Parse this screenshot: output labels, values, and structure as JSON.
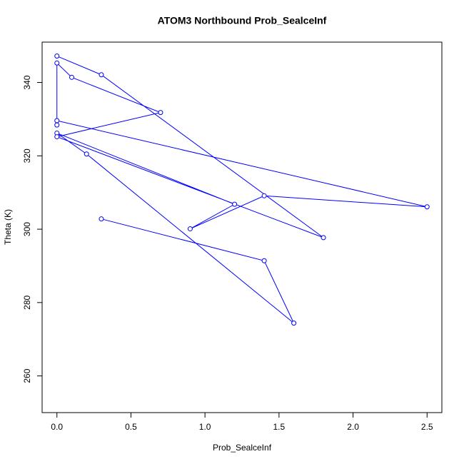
{
  "chart_data": {
    "type": "line",
    "title": "ATOM3 Northbound Prob_SealceInf",
    "x_label": "Prob_SealceInf",
    "y_label": "Theta (K)",
    "x": [
      0.3,
      1.4,
      1.6,
      0.2,
      0.0,
      1.2,
      0.9,
      1.4,
      2.5,
      0.0,
      0.0,
      0.0,
      0.1,
      0.7,
      0.0,
      1.8,
      0.3,
      0.0
    ],
    "series": [
      {
        "name": "Theta",
        "color": "#0000ff",
        "values": [
          302.8,
          291.4,
          274.4,
          320.5,
          326.2,
          306.8,
          300.1,
          309.1,
          306.1,
          329.6,
          328.4,
          345.3,
          341.4,
          331.8,
          325.2,
          297.7,
          342.1,
          347.2
        ]
      }
    ],
    "xlim": [
      -0.1,
      2.6
    ],
    "xticks": [
      {
        "value": 0,
        "label": "0.0"
      },
      0.5,
      {
        "value": 1,
        "label": "1.0"
      },
      1.5,
      {
        "value": 2,
        "label": "2.0"
      },
      2.5
    ],
    "ylim": [
      250,
      351
    ],
    "yticks": [
      260,
      280,
      300,
      320,
      340
    ]
  }
}
